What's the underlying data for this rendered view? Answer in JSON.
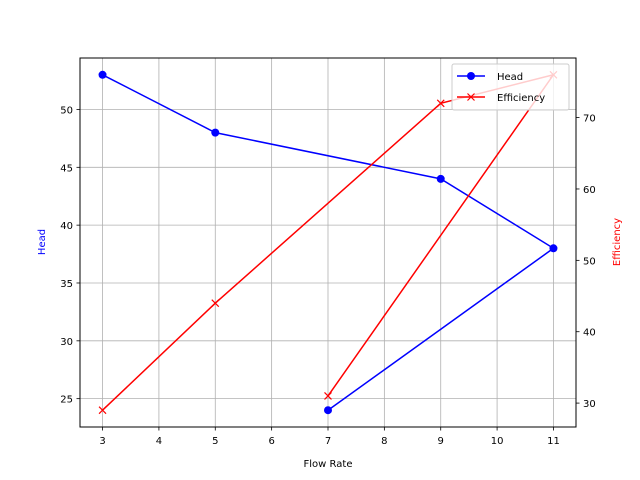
{
  "chart_data": {
    "type": "line",
    "title": "",
    "xlabel": "Flow Rate",
    "ylabel": "Head",
    "ylabel_right": "Efficiency",
    "x": [
      3,
      5,
      9,
      11,
      7
    ],
    "series": [
      {
        "name": "Head",
        "axis": "left",
        "color": "#0000ff",
        "marker": "o",
        "values": [
          53,
          48,
          44,
          38,
          24
        ]
      },
      {
        "name": "Efficiency",
        "axis": "right",
        "color": "#ff0000",
        "marker": "x",
        "values": [
          29,
          44,
          72,
          76,
          31
        ]
      }
    ],
    "xlim": [
      2.6,
      11.4
    ],
    "ylim": [
      22.55,
      54.45
    ],
    "ylim_right": [
      26.65,
      78.35
    ],
    "xticks": [
      3,
      4,
      5,
      6,
      7,
      8,
      9,
      10,
      11
    ],
    "yticks": [
      25,
      30,
      35,
      40,
      45,
      50
    ],
    "yticks_right": [
      30,
      40,
      50,
      60,
      70
    ],
    "grid": true,
    "legend_position": "upper right",
    "legend": [
      "Head",
      "Efficiency"
    ]
  },
  "colors": {
    "head": "#0000ff",
    "efficiency": "#ff0000",
    "grid": "#b0b0b0"
  }
}
